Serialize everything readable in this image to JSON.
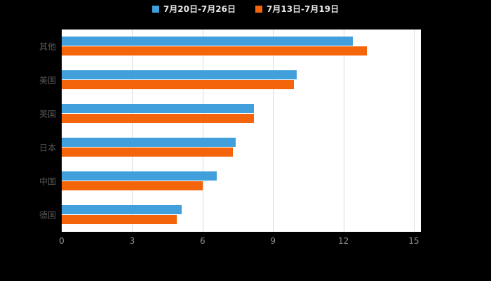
{
  "chart_data": {
    "type": "bar",
    "orientation": "horizontal",
    "title": "",
    "xlabel": "",
    "ylabel": "",
    "categories": [
      "其他",
      "美国",
      "英国",
      "日本",
      "中国",
      "德国"
    ],
    "series": [
      {
        "name": "7月20日-7月26日",
        "color": "#41A0DC",
        "values": [
          12.4,
          10.0,
          8.2,
          7.4,
          6.6,
          5.1
        ]
      },
      {
        "name": "7月13日-7月19日",
        "color": "#F4640A",
        "values": [
          13.0,
          9.9,
          8.2,
          7.3,
          6.0,
          4.9
        ]
      }
    ],
    "xlim": [
      0,
      15
    ],
    "xticks": [
      0,
      3,
      6,
      9,
      12,
      15
    ],
    "grid": true,
    "legend_position": "top"
  },
  "legend": {
    "items": [
      {
        "label": "7月20日-7月26日",
        "color": "#41A0DC"
      },
      {
        "label": "7月13日-7月19日",
        "color": "#F4640A"
      }
    ]
  },
  "colors": {
    "background": "#000000",
    "plot_background": "#ffffff",
    "gridline": "#d9d9d9",
    "tick_label": "#8c8c8c",
    "category_label": "#595959",
    "legend_text": "#e6e6e6"
  }
}
